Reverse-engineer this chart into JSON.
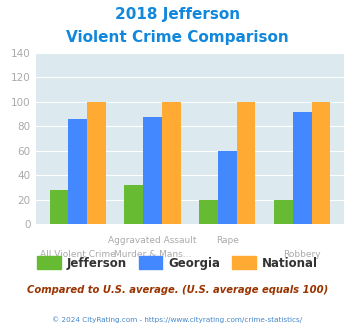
{
  "title_line1": "2018 Jefferson",
  "title_line2": "Violent Crime Comparison",
  "jefferson": [
    28,
    32,
    20,
    20
  ],
  "georgia": [
    86,
    88,
    60,
    92
  ],
  "national": [
    100,
    100,
    100,
    100
  ],
  "jefferson_color": "#66bb33",
  "georgia_color": "#4488ff",
  "national_color": "#ffaa33",
  "ylim": [
    0,
    140
  ],
  "yticks": [
    0,
    20,
    40,
    60,
    80,
    100,
    120,
    140
  ],
  "background_color": "#dce9ee",
  "title_color": "#1188dd",
  "footer_text": "Compared to U.S. average. (U.S. average equals 100)",
  "footer_color": "#993300",
  "copyright_text": "© 2024 CityRating.com - https://www.cityrating.com/crime-statistics/",
  "copyright_color": "#4488cc",
  "tick_label_color": "#aaaaaa",
  "legend_text_color": "#333333",
  "top_labels": [
    "",
    "Aggravated Assault",
    "Rape",
    ""
  ],
  "bottom_labels": [
    "All Violent Crime",
    "Murder & Mans...",
    "",
    "Robbery"
  ]
}
